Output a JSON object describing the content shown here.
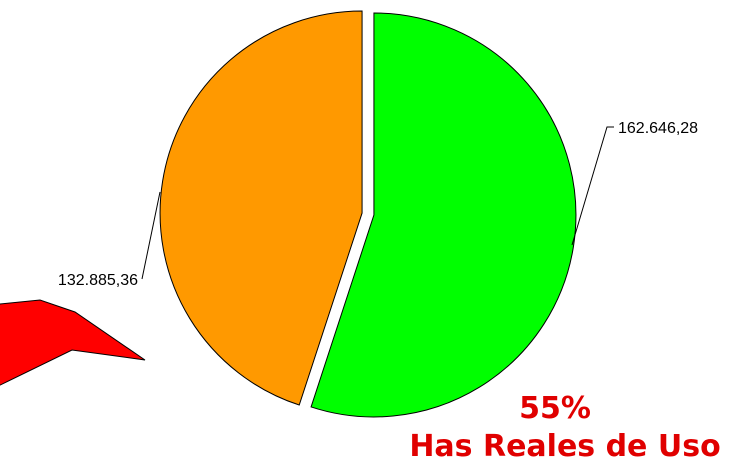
{
  "chart_data": {
    "type": "pie",
    "slices": [
      {
        "value": 162646.28,
        "label": "162.646,28",
        "color": "#00ff00"
      },
      {
        "value": 132885.36,
        "label": "132.885,36",
        "color": "#ff9900"
      }
    ],
    "annotation": {
      "percent": "55%",
      "text": "Has Reales de Uso"
    },
    "legend": "none",
    "grid": false
  },
  "colors": {
    "callout": "#ff0000",
    "annotation_text": "#e00000",
    "outline": "#000000"
  }
}
